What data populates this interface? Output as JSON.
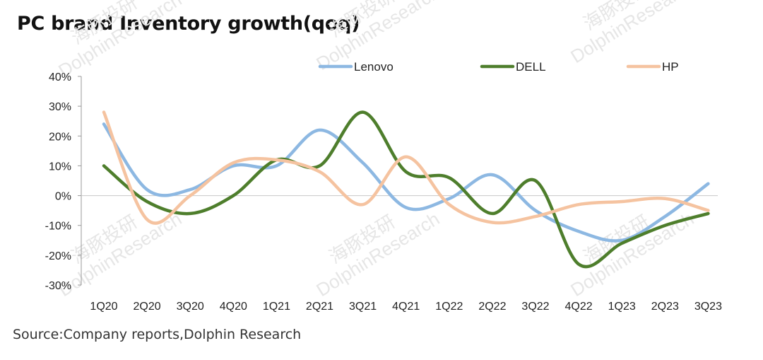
{
  "chart_data": {
    "type": "line",
    "title": "PC brand Inventory growth(qoq)",
    "categories": [
      "1Q20",
      "2Q20",
      "3Q20",
      "4Q20",
      "1Q21",
      "2Q21",
      "3Q21",
      "4Q21",
      "1Q22",
      "2Q22",
      "3Q22",
      "4Q22",
      "1Q23",
      "2Q23",
      "3Q23"
    ],
    "y_ticks": [
      "40%",
      "30%",
      "20%",
      "10%",
      "0%",
      "-10%",
      "-20%",
      "-30%"
    ],
    "ylim": [
      -30,
      40
    ],
    "smooth": true,
    "legend_position": "top",
    "series": [
      {
        "name": "Lenovo",
        "color": "#8db8e2",
        "values": [
          24,
          2,
          2,
          10,
          10,
          22,
          11,
          -4,
          -1,
          7,
          -5,
          -12,
          -15,
          -7,
          4
        ]
      },
      {
        "name": "DELL",
        "color": "#4e7e2c",
        "values": [
          10,
          -2,
          -6,
          0,
          12,
          10,
          28,
          8,
          6,
          -6,
          5,
          -23,
          -16,
          -10,
          -6
        ]
      },
      {
        "name": "HP",
        "color": "#f5c3a0",
        "values": [
          28,
          -8,
          0,
          11,
          12,
          8,
          -3,
          13,
          -3,
          -9,
          -7,
          -3,
          -2,
          -1,
          -5
        ]
      }
    ]
  },
  "watermark": {
    "cn": "海豚投研",
    "en": "DolphinResearch"
  },
  "source": "Source:Company reports,Dolphin Research"
}
